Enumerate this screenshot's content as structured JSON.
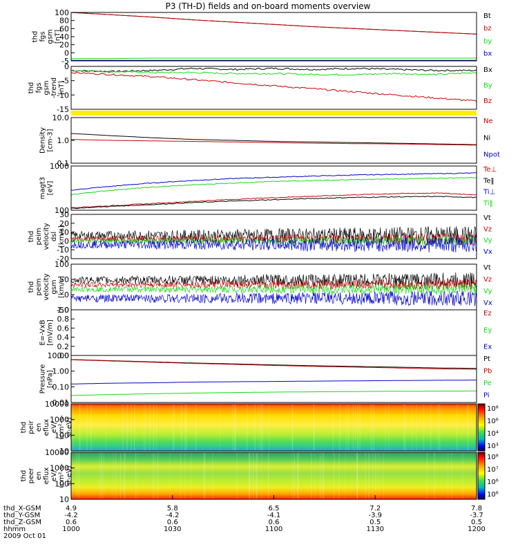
{
  "title": "P3 (TH-D) fields and on-board moments overview",
  "date": "2009 Oct 01",
  "colors": {
    "black": "#000000",
    "red": "#cc0000",
    "green": "#11dd11",
    "blue": "#0000cc",
    "yellow": "#ffee00"
  },
  "chart_data": [
    {
      "type": "line",
      "id": "fgs-gsm",
      "ylabel": [
        "thd",
        "fgs",
        "gsm",
        "[nT]"
      ],
      "ticks": [
        "100",
        "80",
        "60",
        "40",
        "20",
        "0",
        "-5"
      ],
      "ylim": [
        -5,
        100
      ],
      "legend": [
        "Bt",
        "bz",
        "by",
        "bx"
      ],
      "series": [
        {
          "name": "Bt",
          "color": "black",
          "values": [
            100,
            95,
            90,
            84,
            79,
            74,
            69,
            65,
            61,
            57,
            53
          ]
        },
        {
          "name": "bz",
          "color": "red",
          "values": [
            100,
            95,
            90,
            84,
            79,
            74,
            69,
            65,
            61,
            57,
            53
          ]
        },
        {
          "name": "by",
          "color": "green",
          "values": [
            0,
            0,
            1,
            1,
            1,
            1,
            1,
            1,
            1,
            1,
            1
          ]
        },
        {
          "name": "bx",
          "color": "blue",
          "values": [
            -4,
            -4,
            -4,
            -4,
            -4,
            -4,
            -4,
            -4,
            -4,
            -4,
            -4
          ]
        }
      ]
    },
    {
      "type": "line",
      "id": "fgs-gsm-dtrend",
      "ylabel": [
        "thd",
        "fgs",
        "gsm",
        "-trend",
        "[nT]"
      ],
      "ticks": [
        "0",
        "-5",
        "-10",
        "-15"
      ],
      "ylim": [
        -18,
        3
      ],
      "legend": [
        "Bx",
        "By",
        "Bz"
      ],
      "series": [
        {
          "name": "Bx",
          "color": "black",
          "values": [
            1,
            0.5,
            1,
            2,
            1.5,
            2,
            1.5,
            2,
            1.5,
            1,
            1
          ]
        },
        {
          "name": "By",
          "color": "green",
          "values": [
            1,
            0.5,
            0,
            0,
            -0.5,
            -0.5,
            -1,
            -1,
            -0.5,
            -1,
            0
          ]
        },
        {
          "name": "Bz",
          "color": "red",
          "values": [
            0,
            -1,
            -2,
            -3.5,
            -5,
            -6.5,
            -8,
            -9.5,
            -11,
            -12.5,
            -14
          ]
        }
      ]
    },
    {
      "type": "line",
      "id": "density",
      "scale": "log",
      "ylabel": [
        "Density",
        "[cm-3]"
      ],
      "ticks": [
        "10.0",
        "1.0",
        "0.1"
      ],
      "ylim": [
        0.1,
        10
      ],
      "legend": [
        "Ne",
        "Ni",
        "Npot"
      ],
      "series": [
        {
          "name": "Ni",
          "color": "black",
          "values": [
            2.0,
            1.6,
            1.3,
            1.1,
            1.0,
            0.9,
            0.85,
            0.8,
            0.75,
            0.7,
            0.65
          ]
        },
        {
          "name": "Ne",
          "color": "red",
          "values": [
            1.1,
            1.0,
            0.95,
            0.9,
            0.85,
            0.8,
            0.75,
            0.72,
            0.7,
            0.66,
            0.62
          ]
        }
      ]
    },
    {
      "type": "line",
      "id": "temperature",
      "scale": "log",
      "ylabel": [
        "magt3",
        "[eV]"
      ],
      "ticks": [
        "1000",
        "100"
      ],
      "ylim": [
        100,
        10000
      ],
      "legend": [
        "Te⊥",
        "Te‖",
        "Ti⊥",
        "Ti‖"
      ],
      "series": [
        {
          "name": "Ti⊥",
          "color": "blue",
          "values": [
            800,
            1200,
            1700,
            2200,
            2700,
            3100,
            3500,
            3900,
            4200,
            4500,
            4800
          ]
        },
        {
          "name": "Ti‖",
          "color": "green",
          "values": [
            500,
            800,
            1100,
            1400,
            1700,
            2000,
            2200,
            2400,
            2600,
            2800,
            3000
          ]
        },
        {
          "name": "Te⊥",
          "color": "red",
          "values": [
            130,
            160,
            200,
            250,
            310,
            370,
            430,
            500,
            560,
            600,
            500
          ]
        },
        {
          "name": "Te‖",
          "color": "black",
          "values": [
            120,
            150,
            180,
            220,
            260,
            300,
            340,
            380,
            400,
            420,
            380
          ]
        }
      ]
    },
    {
      "type": "line",
      "id": "peim-velocity-dsl",
      "ylabel": [
        "thd",
        "peim",
        "velocity",
        "dsl",
        "[km/s]"
      ],
      "ticks": [
        "30",
        "20",
        "10",
        "0",
        "-10",
        "-20"
      ],
      "ylim": [
        -20,
        30
      ],
      "legend": [
        "Vt",
        "Vz",
        "Vy",
        "Vx"
      ],
      "series": [
        {
          "name": "Vt",
          "color": "black",
          "center": 6,
          "spread": 8
        },
        {
          "name": "Vz",
          "color": "red",
          "center": 2,
          "spread": 5
        },
        {
          "name": "Vy",
          "color": "green",
          "center": 0,
          "spread": 4
        },
        {
          "name": "Vx",
          "color": "blue",
          "center": -4,
          "spread": 7
        }
      ]
    },
    {
      "type": "line",
      "id": "peim-velocity-gsm",
      "ylabel": [
        "thd",
        "peim",
        "velocity",
        "gsm",
        "[km/s]"
      ],
      "ticks": [
        "100",
        "50",
        "0",
        "-50"
      ],
      "ylim": [
        -75,
        125
      ],
      "legend": [
        "Vt",
        "Vz",
        "Vy",
        "Vx"
      ],
      "series": [
        {
          "name": "Vt",
          "color": "black",
          "center": 55,
          "spread": 25
        },
        {
          "name": "Vz",
          "color": "red",
          "center": 35,
          "spread": 18
        },
        {
          "name": "Vy",
          "color": "green",
          "center": 15,
          "spread": 18
        },
        {
          "name": "Vx",
          "color": "blue",
          "center": -25,
          "spread": 25
        }
      ]
    },
    {
      "type": "line",
      "id": "e-vxb",
      "ylabel": [
        "E=-VxB",
        "[mV/m]"
      ],
      "ticks": [
        "1.0",
        "0.8",
        "0.6",
        "0.4",
        "0.2",
        "0.0"
      ],
      "ylim": [
        0,
        1
      ],
      "legend": [
        "Ez",
        "Ey",
        "Ex"
      ],
      "series": []
    },
    {
      "type": "line",
      "id": "pressure",
      "scale": "log",
      "ylabel": [
        "Pressure",
        "[nPa]"
      ],
      "ticks": [
        "10.00",
        "1.00",
        "0.10",
        "0.01"
      ],
      "ylim": [
        0.01,
        10
      ],
      "legend": [
        "Pt",
        "Pb",
        "Pe",
        "Pi"
      ],
      "series": [
        {
          "name": "Pt",
          "color": "black",
          "values": [
            5.5,
            4.6,
            3.9,
            3.3,
            2.9,
            2.5,
            2.2,
            2.0,
            1.8,
            1.6,
            1.5
          ]
        },
        {
          "name": "Pb",
          "color": "red",
          "values": [
            5.3,
            4.4,
            3.7,
            3.1,
            2.7,
            2.3,
            2.0,
            1.8,
            1.6,
            1.4,
            1.3
          ]
        },
        {
          "name": "Pi",
          "color": "blue",
          "values": [
            0.15,
            0.17,
            0.18,
            0.2,
            0.21,
            0.22,
            0.23,
            0.24,
            0.25,
            0.26,
            0.27
          ]
        },
        {
          "name": "Pe",
          "color": "green",
          "values": [
            0.028,
            0.032,
            0.036,
            0.04,
            0.043,
            0.046,
            0.048,
            0.05,
            0.052,
            0.053,
            0.054
          ]
        }
      ]
    },
    {
      "type": "heatmap",
      "id": "peir-en-eflux",
      "ylabel": [
        "thd",
        "peir",
        "en",
        "eflux",
        "eV/",
        "(cm²-s-",
        "sr-eV)"
      ],
      "ticks": [
        "10000",
        "1000",
        "100",
        "10"
      ],
      "colorbar_ticks": [
        "10⁸",
        "10⁶",
        "10⁴",
        "10³"
      ]
    },
    {
      "type": "heatmap",
      "id": "peer-en-eflux",
      "ylabel": [
        "thd",
        "peer",
        "en",
        "eflux",
        "eV/",
        "(cm²-s-",
        "sr-eV)"
      ],
      "ticks": [
        "10000",
        "1000",
        "100",
        "10"
      ],
      "colorbar_ticks": [
        "10⁸",
        "10⁷",
        "10⁶",
        "10⁶"
      ]
    }
  ],
  "x_axis": {
    "row_labels": [
      "thd_X-GSM",
      "thd_Y-GSM",
      "thd_Z-GSM",
      "hhmm",
      "2009 Oct 01"
    ],
    "columns": [
      [
        "4.9",
        "-4.2",
        "0.6",
        "1000"
      ],
      [
        "5.8",
        "-4.2",
        "0.6",
        "1030"
      ],
      [
        "6.5",
        "-4.1",
        "0.6",
        "1100"
      ],
      [
        "7.2",
        "-3.9",
        "0.5",
        "1130"
      ],
      [
        "7.8",
        "-3.7",
        "0.5",
        "1200"
      ]
    ]
  }
}
